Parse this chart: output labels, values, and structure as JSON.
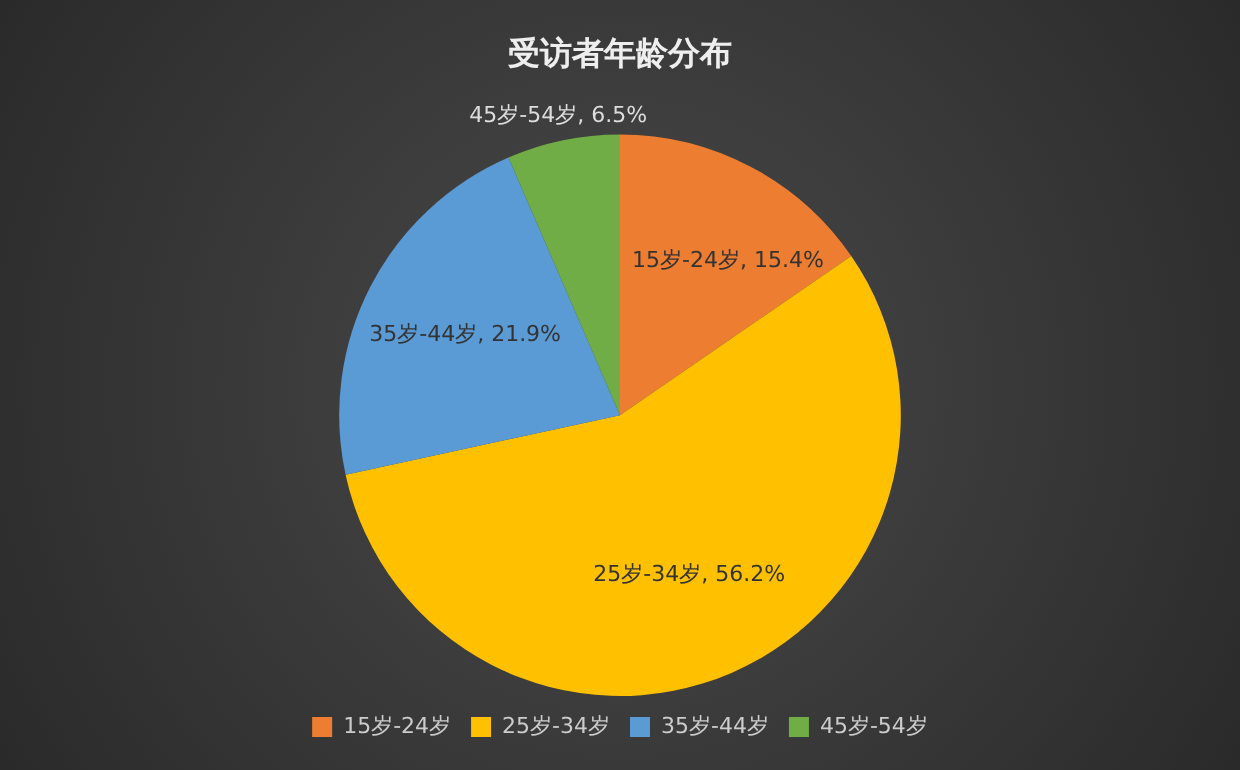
{
  "chart_data": {
    "type": "pie",
    "title": "受访者年龄分布",
    "categories": [
      "15岁-24岁",
      "25岁-34岁",
      "35岁-44岁",
      "45岁-54岁"
    ],
    "values": [
      15.4,
      56.2,
      21.9,
      6.5
    ],
    "colors": [
      "#ed7d31",
      "#ffc000",
      "#5b9bd5",
      "#70ad47"
    ],
    "value_labels": [
      "15岁-24岁, 15.4%",
      "25岁-34岁, 56.2%",
      "35岁-44岁, 21.9%",
      "45岁-54岁, 6.5%"
    ],
    "legend": "bottom"
  }
}
